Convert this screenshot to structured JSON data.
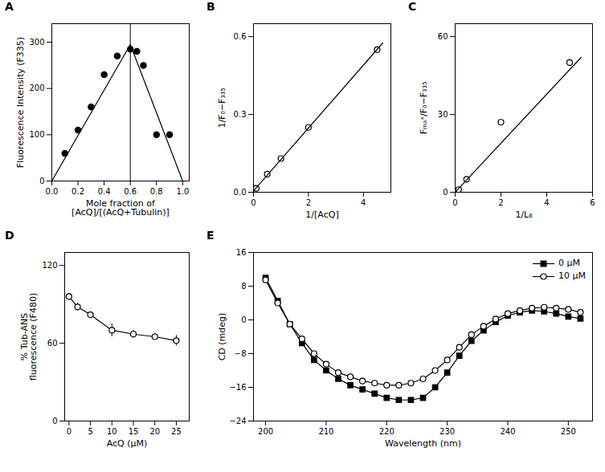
{
  "chart_data": [
    {
      "type": "scatter",
      "title": "A",
      "xlabel": "Mole fraction of\n[AcQ]/[(AcQ+Tubulin)]",
      "ylabel": "Fluorescence Intensity (F335)",
      "xlim": [
        0,
        1.05
      ],
      "ylim": [
        0,
        340
      ],
      "xticks": [
        {
          "value": 0,
          "label": "0.0"
        },
        0.2,
        0.4,
        0.6,
        0.8,
        {
          "value": 1.0,
          "label": "1.0"
        }
      ],
      "yticks": [
        0,
        100,
        200,
        300
      ],
      "grid": false,
      "series": [
        {
          "type": "scatter",
          "x": [
            0.1,
            0.2,
            0.3,
            0.4,
            0.5,
            0.6,
            0.65,
            0.7,
            0.8,
            0.9
          ],
          "values": [
            60,
            110,
            160,
            230,
            270,
            285,
            280,
            250,
            100,
            100
          ],
          "color": "black",
          "marker": "circle"
        },
        {
          "type": "line",
          "x": [
            0,
            0.6
          ],
          "values": [
            0,
            295
          ],
          "color": "black"
        },
        {
          "type": "line",
          "x": [
            0.6,
            1.0
          ],
          "values": [
            295,
            0
          ],
          "color": "black"
        },
        {
          "type": "vline",
          "x": [
            0.6
          ],
          "color": "black"
        }
      ]
    },
    {
      "type": "scatter",
      "title": "B",
      "xlabel": "1/[AcQ]",
      "ylabel": "1/F₀−F₃₃₅",
      "xlim": [
        0,
        5
      ],
      "ylim": [
        0,
        0.65
      ],
      "xticks": [
        0,
        2,
        4
      ],
      "yticks": [
        {
          "value": 0,
          "label": "0.0"
        },
        0.3,
        0.6
      ],
      "grid": false,
      "series": [
        {
          "type": "scatter",
          "x": [
            0.1,
            0.5,
            1.0,
            2.0,
            4.5
          ],
          "values": [
            0.015,
            0.07,
            0.13,
            0.25,
            0.55
          ],
          "color": "black",
          "marker": "open_circle"
        },
        {
          "type": "line",
          "x": [
            0.0,
            4.7
          ],
          "values": [
            0.005,
            0.575
          ],
          "color": "black"
        }
      ]
    },
    {
      "type": "scatter",
      "title": "C",
      "xlabel": "1/L₆",
      "ylabel": "Fₘₐˣ/F₀−F₃₃₅",
      "xlim": [
        0,
        6
      ],
      "ylim": [
        0,
        65
      ],
      "xticks": [
        0,
        2,
        4,
        6
      ],
      "yticks": [
        0,
        30,
        60
      ],
      "grid": false,
      "series": [
        {
          "type": "scatter",
          "x": [
            0.05,
            0.1,
            0.15,
            0.5,
            2.0,
            5.0
          ],
          "values": [
            0.2,
            0.5,
            1.0,
            5.0,
            27.0,
            50.0
          ],
          "color": "black",
          "marker": "open_circle"
        },
        {
          "type": "line",
          "x": [
            0.0,
            5.5
          ],
          "values": [
            0.0,
            52.0
          ],
          "color": "black"
        }
      ]
    },
    {
      "type": "line",
      "title": "D",
      "xlabel": "AcQ (μM)",
      "ylabel": "% Tub-ANS\nfluorescence (F480)",
      "xlim": [
        -1,
        28
      ],
      "ylim": [
        0,
        130
      ],
      "xticks": [
        0,
        5,
        10,
        15,
        20,
        25
      ],
      "yticks": [
        0,
        60,
        120
      ],
      "grid": false,
      "series": [
        {
          "type": "line",
          "x": [
            0,
            2,
            5,
            10,
            15,
            20,
            25
          ],
          "values": [
            96,
            88,
            82,
            70,
            67,
            65,
            62
          ],
          "yerr": [
            2.5,
            3.0,
            2.0,
            5.0,
            3.0,
            2.5,
            4.0
          ],
          "color": "black",
          "marker": "open_circle"
        }
      ]
    },
    {
      "type": "line",
      "title": "E",
      "xlabel": "Wavelength (nm)",
      "ylabel": "CD (mdeg)",
      "xlim": [
        198,
        254
      ],
      "ylim": [
        -24,
        16
      ],
      "xticks": [
        200,
        210,
        220,
        230,
        240,
        250
      ],
      "yticks": [
        -24,
        -16,
        -8,
        0,
        8,
        16
      ],
      "grid": false,
      "legend": "upper right",
      "series": [
        {
          "name": "0 μM",
          "type": "line",
          "x": [
            200,
            202,
            204,
            206,
            208,
            210,
            212,
            214,
            216,
            218,
            220,
            222,
            224,
            226,
            228,
            230,
            232,
            234,
            236,
            238,
            240,
            242,
            244,
            246,
            248,
            250,
            252
          ],
          "values": [
            10.0,
            4.5,
            -1.0,
            -5.5,
            -9.5,
            -12.0,
            -14.0,
            -15.5,
            -16.5,
            -17.5,
            -18.5,
            -19.0,
            -19.0,
            -18.5,
            -16.0,
            -12.5,
            -8.5,
            -5.0,
            -2.5,
            -0.5,
            1.0,
            1.8,
            2.2,
            2.0,
            1.5,
            0.8,
            0.3
          ],
          "color": "black",
          "marker": "square"
        },
        {
          "name": "10 μM",
          "type": "line",
          "x": [
            200,
            202,
            204,
            206,
            208,
            210,
            212,
            214,
            216,
            218,
            220,
            222,
            224,
            226,
            228,
            230,
            232,
            234,
            236,
            238,
            240,
            242,
            244,
            246,
            248,
            250,
            252
          ],
          "values": [
            9.5,
            4.0,
            -1.0,
            -4.5,
            -8.0,
            -10.5,
            -12.5,
            -13.5,
            -14.5,
            -15.0,
            -15.5,
            -15.5,
            -15.0,
            -14.0,
            -12.0,
            -9.5,
            -6.5,
            -3.5,
            -1.5,
            0.2,
            1.5,
            2.2,
            2.8,
            3.0,
            2.8,
            2.5,
            1.8
          ],
          "color": "black",
          "marker": "open_circle"
        }
      ]
    }
  ]
}
